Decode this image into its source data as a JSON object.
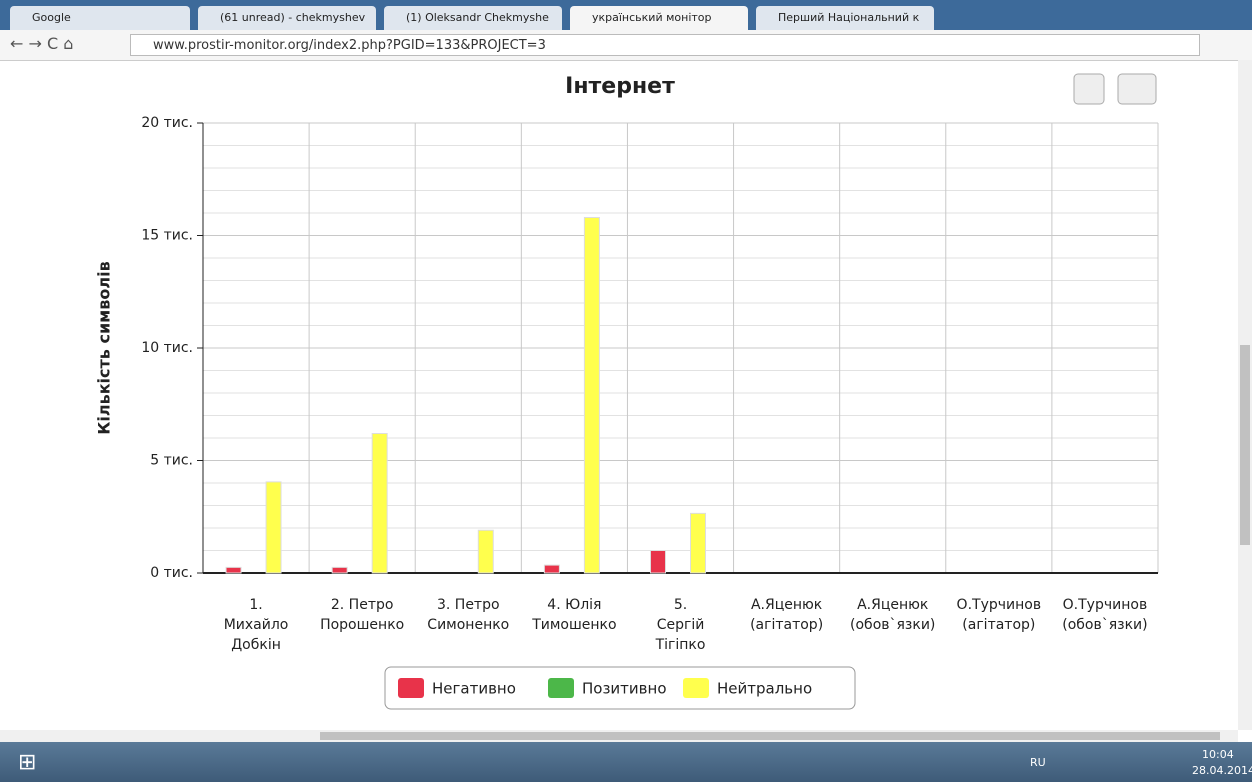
{
  "browser": {
    "tabs": [
      "Google",
      "(61 unread) - chekmyshev",
      "(1) Oleksandr Chekmyshe",
      "український монітор",
      "Перший Національний к"
    ],
    "url": "www.prostir-monitor.org/index2.php?PGID=133&PROJECT=3"
  },
  "taskbar": {
    "language": "RU",
    "time": "10:04",
    "date": "28.04.2014"
  },
  "chart_data": {
    "type": "bar",
    "title": "Інтернет",
    "y_label": "Кількість символів",
    "categories": [
      "1.\nМихайло\nДобкін",
      "2. Петро\nПорошенко",
      "3. Петро\nСимоненко",
      "4. Юлія\nТимошенко",
      "5.\nСергій\nТігіпко",
      "А.Яценюк\n(агітатор)",
      "А.Яценюк\n(обов`язки)",
      "О.Турчинов\n(агітатор)",
      "О.Турчинов\n(обов`язки)"
    ],
    "series": [
      {
        "name": "Негативно",
        "color": "#e8334a",
        "values": [
          250,
          250,
          0,
          350,
          1000,
          0,
          0,
          0,
          0
        ]
      },
      {
        "name": "Позитивно",
        "color": "#4cb749",
        "values": [
          0,
          0,
          0,
          0,
          0,
          0,
          0,
          0,
          0
        ]
      },
      {
        "name": "Нейтрально",
        "color": "#ffff4d",
        "values": [
          4050,
          6200,
          1900,
          15800,
          2650,
          0,
          0,
          0,
          0
        ]
      }
    ],
    "ylim": [
      0,
      20000
    ],
    "yticks": [
      {
        "value": 0,
        "label": "0 тис."
      },
      {
        "value": 5000,
        "label": "5 тис."
      },
      {
        "value": 10000,
        "label": "10 тис."
      },
      {
        "value": 15000,
        "label": "15 тис."
      },
      {
        "value": 20000,
        "label": "20 тис."
      }
    ],
    "minor_yticks": [
      1000,
      2000,
      3000,
      4000,
      6000,
      7000,
      8000,
      9000,
      11000,
      12000,
      13000,
      14000,
      16000,
      17000,
      18000,
      19000
    ],
    "grid": true,
    "legend": "bottom"
  }
}
